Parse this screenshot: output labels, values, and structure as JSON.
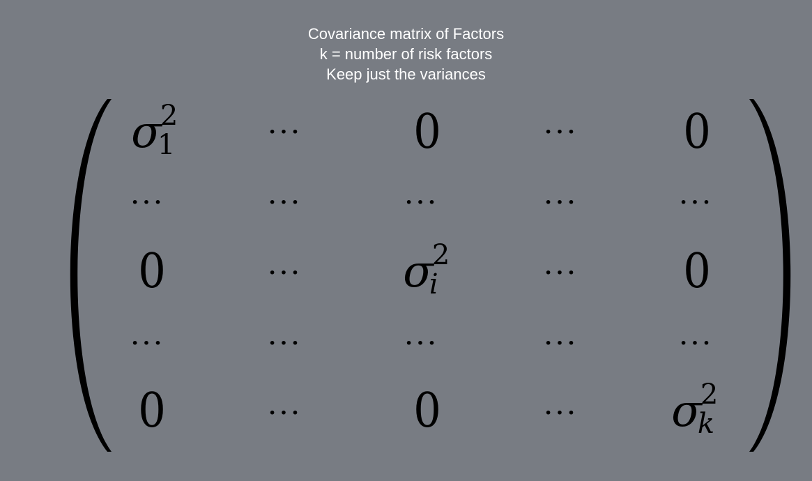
{
  "caption": {
    "line1": "Covariance matrix of Factors",
    "line2": "k = number of risk factors",
    "line3": "Keep just the variances"
  },
  "matrix": {
    "symbol": "σ",
    "exponent": "2",
    "zero": "0",
    "dots": "···",
    "sub_first": "1",
    "sub_middle": "i",
    "sub_last": "k"
  }
}
